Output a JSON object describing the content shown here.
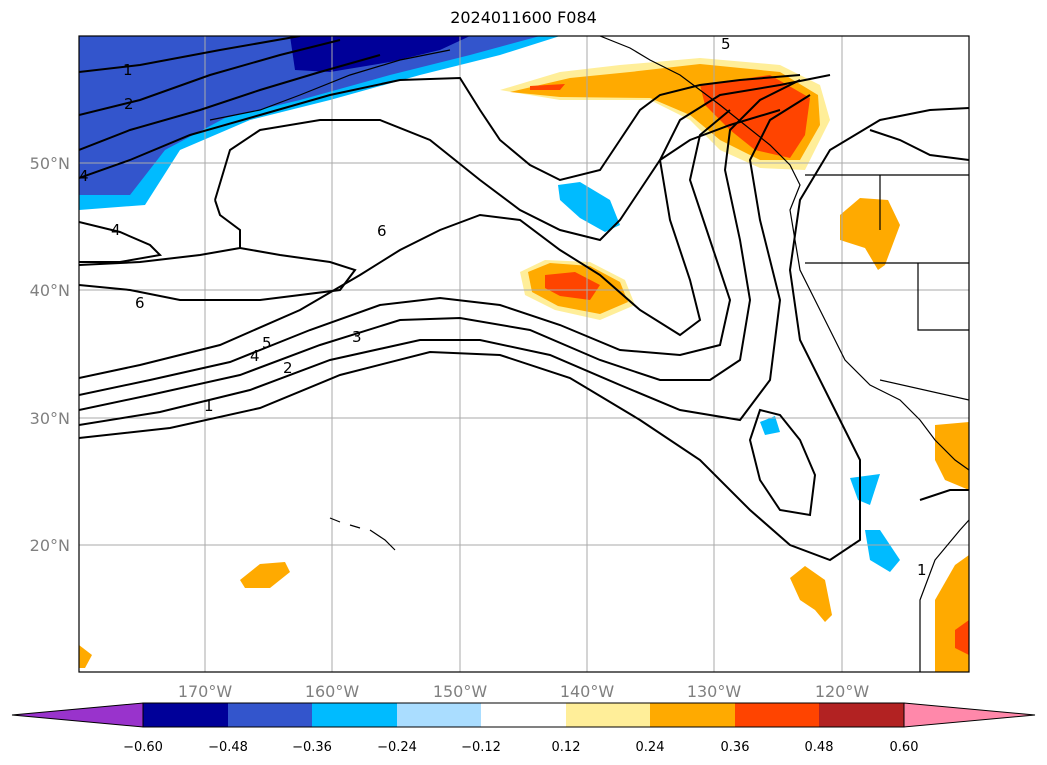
{
  "title": "2024011600 F084",
  "lon_labels": [
    "170°W",
    "160°W",
    "150°W",
    "140°W",
    "130°W",
    "120°W"
  ],
  "lat_labels": [
    "50°N",
    "40°N",
    "30°N",
    "20°N"
  ],
  "contour_labels": [
    "1",
    "2",
    "3",
    "4",
    "4",
    "5",
    "6",
    "6",
    "5",
    "4",
    "2",
    "1",
    "1"
  ],
  "colorbar": {
    "colors": [
      "#9933cc",
      "#000099",
      "#3355cc",
      "#00bbff",
      "#aaddff",
      "#ffffff",
      "#ffee99",
      "#ffaa00",
      "#ff4400",
      "#b22222",
      "#ff88aa"
    ],
    "ticks": [
      "−0.60",
      "−0.48",
      "−0.36",
      "−0.24",
      "−0.12",
      "0.12",
      "0.24",
      "0.36",
      "0.48",
      "0.60"
    ]
  },
  "colors": {
    "grid": "#aaaaaa",
    "contour": "#000000",
    "coast": "#000000"
  }
}
